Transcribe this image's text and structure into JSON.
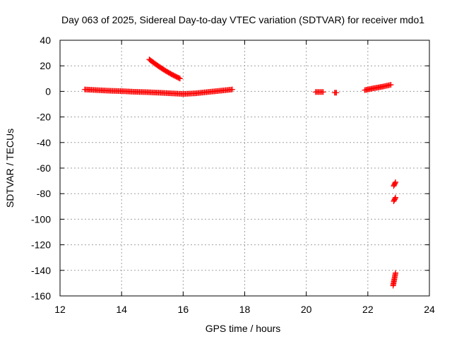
{
  "chart_data": {
    "type": "scatter",
    "title": "Day 063 of 2025, Sidereal Day-to-day VTEC variation (SDTVAR) for receiver mdo1",
    "xlabel": "GPS time / hours",
    "ylabel": "SDTVAR / TECUs",
    "xlim": [
      12,
      24
    ],
    "ylim": [
      -160,
      40
    ],
    "x_ticks": [
      12,
      14,
      16,
      18,
      20,
      22,
      24
    ],
    "y_ticks": [
      40,
      20,
      0,
      -20,
      -40,
      -60,
      -80,
      -100,
      -120,
      -140,
      -160
    ],
    "grid": true,
    "marker": "plus",
    "color": "#ff0000",
    "series": [
      {
        "segments": [
          {
            "x": [
              12.8,
              13.2,
              13.6,
              14.0,
              14.4,
              14.8,
              15.2,
              15.6,
              16.0,
              16.4,
              16.8,
              17.2,
              17.6
            ],
            "y": [
              1.5,
              1.0,
              0.5,
              0.2,
              -0.3,
              -0.6,
              -1.0,
              -1.5,
              -2.0,
              -1.5,
              -0.5,
              0.5,
              1.5
            ]
          },
          {
            "x": [
              14.9,
              15.15,
              15.4,
              15.65,
              15.9
            ],
            "y": [
              25.0,
              20.5,
              16.5,
              13.0,
              10.0
            ]
          },
          {
            "x": [
              20.3,
              20.55
            ],
            "y": [
              -0.5,
              -0.5
            ]
          },
          {
            "x": [
              20.92,
              20.98
            ],
            "y": [
              -1.0,
              -1.0
            ]
          },
          {
            "x": [
              21.9,
              22.2,
              22.5,
              22.75
            ],
            "y": [
              1.0,
              2.5,
              3.8,
              5.2
            ]
          },
          {
            "x": [
              22.84,
              22.9
            ],
            "y": [
              -74.0,
              -71.0
            ]
          },
          {
            "x": [
              22.84,
              22.9
            ],
            "y": [
              -86.0,
              -83.0
            ]
          },
          {
            "x": [
              22.82,
              22.9
            ],
            "y": [
              -152.0,
              -142.0
            ]
          }
        ]
      }
    ]
  }
}
